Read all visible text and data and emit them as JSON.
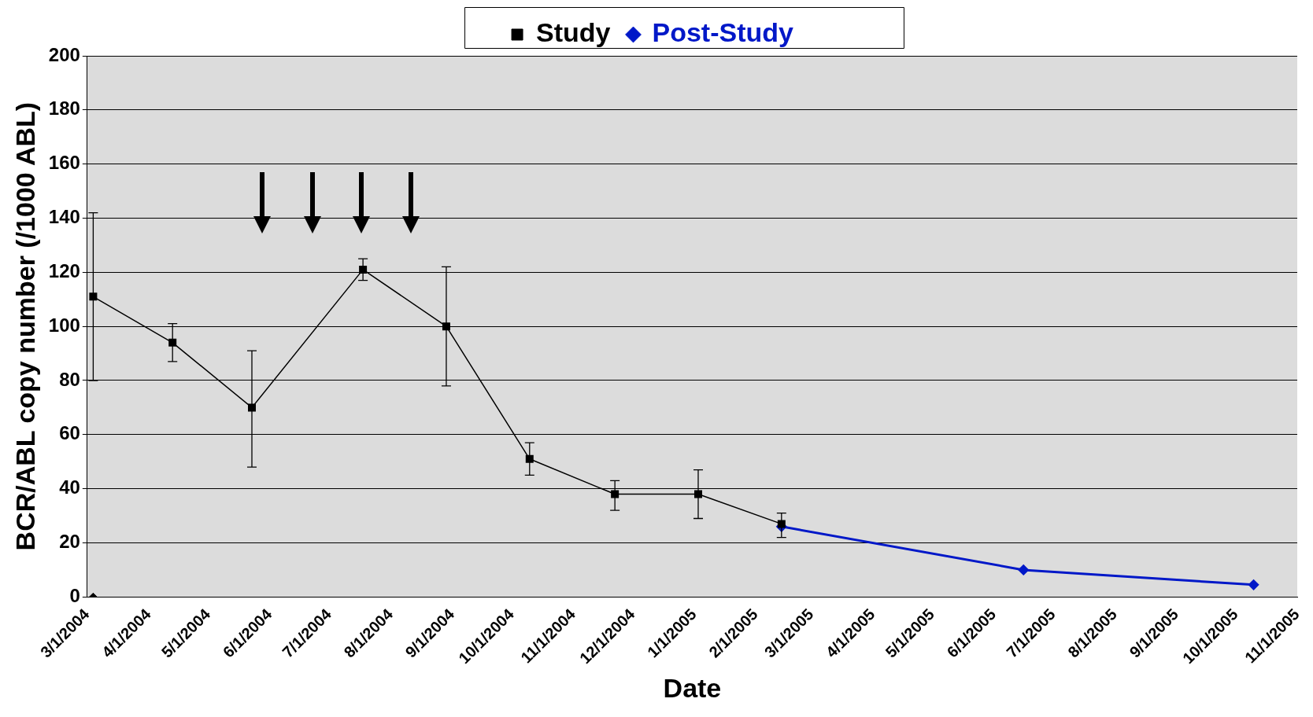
{
  "chart_data": {
    "type": "line",
    "xlabel": "Date",
    "ylabel": "BCR/ABL copy number (/1000 ABL)",
    "xlim": [
      "2004-03-01",
      "2005-11-01"
    ],
    "xticks": [
      {
        "value": "2004-03-01",
        "label": "3/1/2004"
      },
      {
        "value": "2004-04-01",
        "label": "4/1/2004"
      },
      {
        "value": "2004-05-01",
        "label": "5/1/2004"
      },
      {
        "value": "2004-06-01",
        "label": "6/1/2004"
      },
      {
        "value": "2004-07-01",
        "label": "7/1/2004"
      },
      {
        "value": "2004-08-01",
        "label": "8/1/2004"
      },
      {
        "value": "2004-09-01",
        "label": "9/1/2004"
      },
      {
        "value": "2004-10-01",
        "label": "10/1/2004"
      },
      {
        "value": "2004-11-01",
        "label": "11/1/2004"
      },
      {
        "value": "2004-12-01",
        "label": "12/1/2004"
      },
      {
        "value": "2005-01-01",
        "label": "1/1/2005"
      },
      {
        "value": "2005-02-01",
        "label": "2/1/2005"
      },
      {
        "value": "2005-03-01",
        "label": "3/1/2005"
      },
      {
        "value": "2005-04-01",
        "label": "4/1/2005"
      },
      {
        "value": "2005-05-01",
        "label": "5/1/2005"
      },
      {
        "value": "2005-06-01",
        "label": "6/1/2005"
      },
      {
        "value": "2005-07-01",
        "label": "7/1/2005"
      },
      {
        "value": "2005-08-01",
        "label": "8/1/2005"
      },
      {
        "value": "2005-09-01",
        "label": "9/1/2005"
      },
      {
        "value": "2005-10-01",
        "label": "10/1/2005"
      },
      {
        "value": "2005-11-01",
        "label": "11/1/2005"
      }
    ],
    "ylim": [
      0,
      200
    ],
    "yticks": [
      0,
      20,
      40,
      60,
      80,
      100,
      120,
      140,
      160,
      180,
      200
    ],
    "grid": "y",
    "legend": "top",
    "series": [
      {
        "name": "Study",
        "color": "#000000",
        "marker": "square",
        "line_style": "solid",
        "x": [
          "2004-03-04",
          "2004-04-13",
          "2004-05-23",
          "2004-07-18",
          "2004-08-29",
          "2004-10-10",
          "2004-11-22",
          "2005-01-03",
          "2005-02-14"
        ],
        "values": [
          111,
          94,
          70,
          121,
          100,
          51,
          38,
          38,
          27
        ],
        "errors": [
          [
            80,
            142
          ],
          [
            87,
            101
          ],
          [
            48,
            91
          ],
          [
            117,
            125
          ],
          [
            78,
            122
          ],
          [
            45,
            57
          ],
          [
            32,
            43
          ],
          [
            29,
            47
          ],
          [
            22,
            31
          ]
        ]
      },
      {
        "name": "Post-Study",
        "color": "#0018c8",
        "marker": "diamond",
        "line_style": "solid",
        "x": [
          "2005-02-14",
          "2005-06-16",
          "2005-10-10"
        ],
        "values": [
          26,
          10,
          4.5
        ]
      },
      {
        "type": "scatter",
        "color": "#000000",
        "marker": "diamond",
        "x": [
          "2004-03-04"
        ],
        "values": [
          0
        ]
      }
    ]
  }
}
